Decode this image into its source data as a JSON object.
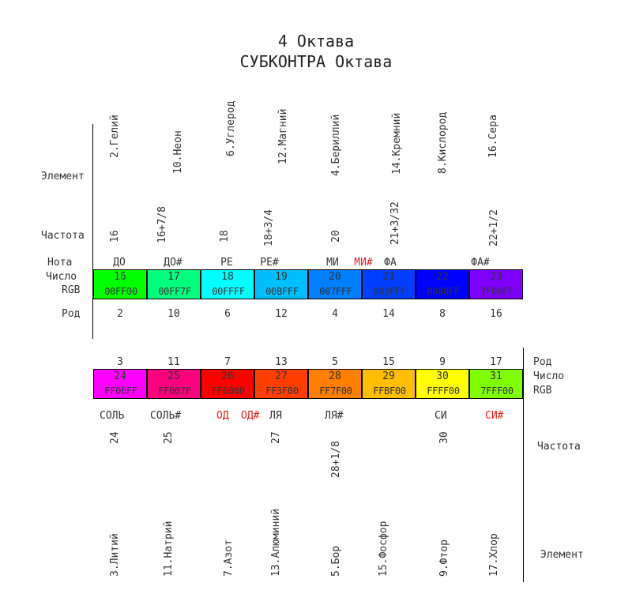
{
  "title": {
    "line1": "4 Октава",
    "line2": "СУБКОНТРА Октава"
  },
  "top": {
    "labels": {
      "element": "Элемент",
      "freq": "Частота",
      "note": "Нота",
      "number": "Число",
      "rgb": "RGB",
      "rod": "Род"
    },
    "elements": [
      "2.Гелий",
      "10.Неон",
      "6.Углерод",
      "12.Магний",
      "4.Бериллий",
      "14.Кремний",
      "8.Кислород",
      "16.Сера"
    ],
    "freqs": [
      "16",
      "16+7/8",
      "18",
      "18+3/4",
      "20",
      "21+3/32",
      "",
      "22+1/2"
    ],
    "notes": [
      "ДО",
      "ДО#",
      "РЕ",
      "РЕ#",
      "МИ",
      "МИ#",
      "ФА",
      "ФА#"
    ],
    "cells": [
      {
        "num": "16",
        "hex": "00FF00",
        "color": "#00ff00"
      },
      {
        "num": "17",
        "hex": "00FF7F",
        "color": "#00ff7f"
      },
      {
        "num": "18",
        "hex": "00FFFF",
        "color": "#00ffff"
      },
      {
        "num": "19",
        "hex": "00BFFF",
        "color": "#00bfff"
      },
      {
        "num": "20",
        "hex": "007FFF",
        "color": "#007fff"
      },
      {
        "num": "21",
        "hex": "003FFF",
        "color": "#003fff"
      },
      {
        "num": "22",
        "hex": "0000FF",
        "color": "#0000ff"
      },
      {
        "num": "23",
        "hex": "7F00FF",
        "color": "#7f00ff"
      }
    ],
    "rods": [
      "2",
      "10",
      "6",
      "12",
      "4",
      "14",
      "8",
      "16"
    ]
  },
  "bottom": {
    "labels": {
      "rod": "Род",
      "number": "Число",
      "rgb": "RGB",
      "freq": "Частота",
      "element": "Элемент"
    },
    "rods": [
      "3",
      "11",
      "7",
      "13",
      "5",
      "15",
      "9",
      "17"
    ],
    "cells": [
      {
        "num": "24",
        "hex": "FF00FF",
        "color": "#ff00ff"
      },
      {
        "num": "25",
        "hex": "FF007F",
        "color": "#ff007f"
      },
      {
        "num": "26",
        "hex": "FF0000",
        "color": "#ff0000"
      },
      {
        "num": "27",
        "hex": "FF3F00",
        "color": "#ff3f00"
      },
      {
        "num": "28",
        "hex": "FF7F00",
        "color": "#ff7f00"
      },
      {
        "num": "29",
        "hex": "FFBF00",
        "color": "#ffbf00"
      },
      {
        "num": "30",
        "hex": "FFFF00",
        "color": "#ffff00"
      },
      {
        "num": "31",
        "hex": "7FFF00",
        "color": "#7fff00"
      }
    ],
    "notes": [
      "СОЛЬ",
      "СОЛЬ#",
      "ОД",
      "ОД#",
      "ЛЯ",
      "ЛЯ#",
      "СИ",
      "СИ#"
    ],
    "freqs": [
      "24",
      "25",
      "",
      "27",
      "28+1/8",
      "",
      "30",
      ""
    ],
    "elements": [
      "3.Литий",
      "11.Натрий",
      "7.Азот",
      "13.Алюминий",
      "5.Бор",
      "15.Фосфор",
      "9.Фтор",
      "17.Хлор"
    ]
  }
}
